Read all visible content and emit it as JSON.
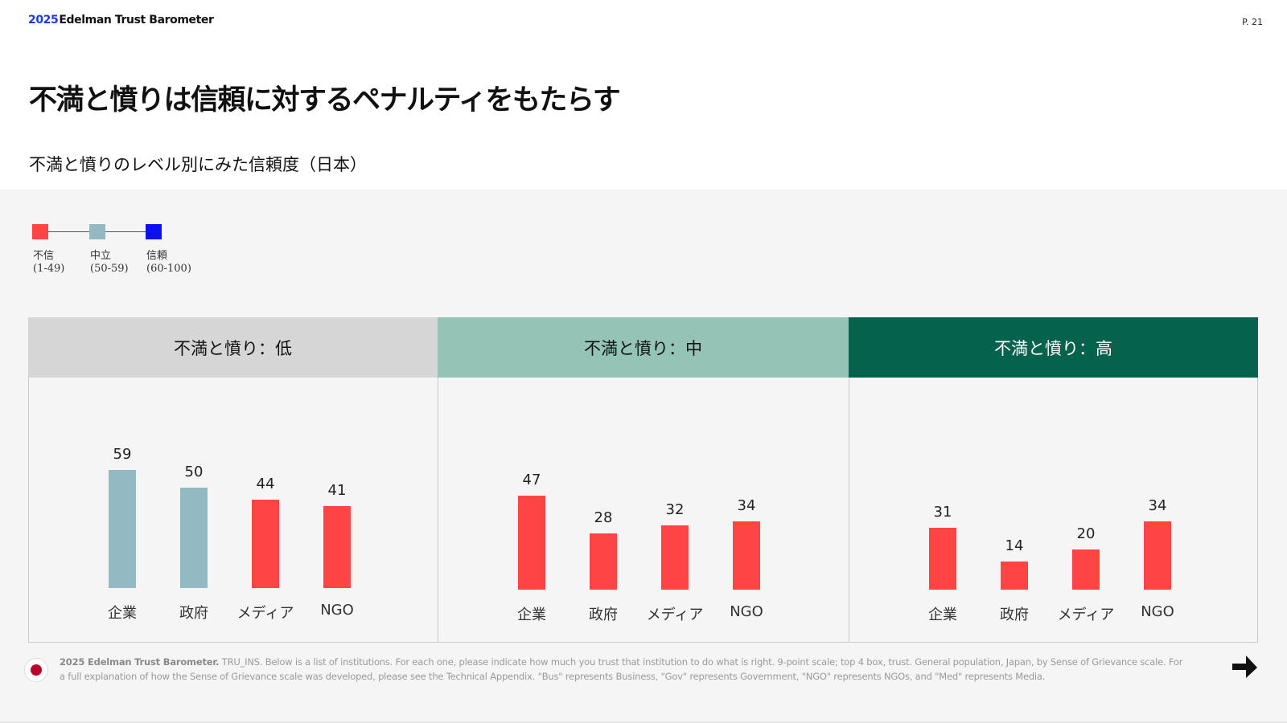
{
  "header": {
    "brand_year": "2025",
    "brand_name": "Edelman Trust Barometer",
    "page": "P. 21"
  },
  "title": "不満と憤りは信頼に対するペナルティをもたらす",
  "subtitle": "不満と憤りのレベル別にみた信頼度（日本）",
  "legend": [
    {
      "label": "不信",
      "range": "(1-49)",
      "color": "#ff4444"
    },
    {
      "label": "中立",
      "range": "(50-59)",
      "color": "#93b9c3"
    },
    {
      "label": "信頼",
      "range": "(60-100)",
      "color": "#0a10f0"
    }
  ],
  "panel_colors": {
    "low": "#d6d6d6",
    "mid": "#94c4b6",
    "high": "#05624c"
  },
  "chart_data": {
    "type": "bar",
    "categories": [
      "企業",
      "政府",
      "メディア",
      "NGO"
    ],
    "color_scale": [
      {
        "min": 1,
        "max": 49,
        "color": "#ff4444"
      },
      {
        "min": 50,
        "max": 59,
        "color": "#93b9c3"
      },
      {
        "min": 60,
        "max": 100,
        "color": "#0a10f0"
      }
    ],
    "panels": [
      {
        "title": "不満と憤り：低",
        "values": [
          59,
          50,
          44,
          41
        ]
      },
      {
        "title": "不満と憤り：中",
        "values": [
          47,
          28,
          32,
          34
        ]
      },
      {
        "title": "不満と憤り：高",
        "values": [
          31,
          14,
          20,
          34
        ]
      }
    ]
  },
  "footnote": {
    "source": "2025 Edelman Trust Barometer.",
    "text": " TRU_INS. Below is a list of institutions. For each one, please indicate how much you trust that institution to do what is right. 9-point scale; top 4 box, trust. General population, Japan, by Sense of Grievance scale. For a full explanation of how the Sense of Grievance scale was developed, please see the Technical Appendix. \"Bus\" represents Business, \"Gov\" represents Government, \"NGO\" represents NGOs, and \"Med\" represents Media."
  },
  "icons": {
    "flag": "japan-flag-icon",
    "next": "next-arrow-icon"
  }
}
